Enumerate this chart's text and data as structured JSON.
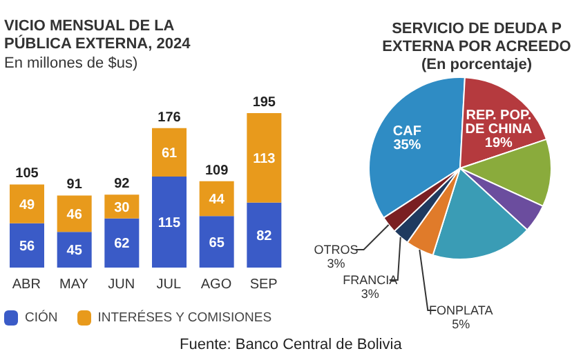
{
  "chart_data": [
    {
      "type": "bar",
      "title": "VICIO MENSUAL DE LA\nPÚBLICA EXTERNA, 2024",
      "subtitle": "En millones de $us)",
      "categories": [
        "ABR",
        "MAY",
        "JUN",
        "JUL",
        "AGO",
        "SEP"
      ],
      "stacked": true,
      "data_labels": true,
      "legend": "bottom",
      "series": [
        {
          "name": "CIÓN",
          "color": "#3a5bc7",
          "values": [
            56,
            45,
            62,
            115,
            65,
            82
          ]
        },
        {
          "name": "INTERÉSES Y COMISIONES",
          "color": "#e89a1c",
          "values": [
            49,
            46,
            30,
            61,
            44,
            113
          ]
        }
      ],
      "totals": [
        "105",
        "91",
        "92",
        "176",
        "109",
        "195"
      ],
      "annotations": [
        "Fuente: Banco Central de Bolivia"
      ]
    },
    {
      "type": "pie",
      "title": "SERVICIO DE DEUDA P\nEXTERNA POR ACREEDO\n(En porcentaje)",
      "categories": [
        "CAF",
        "REP. POP.\nDE CHINA",
        null,
        null,
        null,
        "FONPLATA",
        "FRANCIA",
        "OTROS"
      ],
      "values": [
        35,
        19,
        12,
        5,
        18,
        5,
        3,
        3
      ],
      "value_labels": [
        "35%",
        "19%",
        null,
        null,
        null,
        "5%",
        "3%",
        "3%"
      ],
      "colors": [
        "#2f8cc4",
        "#b53a3e",
        "#8aab3c",
        "#6b4d9e",
        "#3a9cb5",
        "#e07b2a",
        "#1f3a5f",
        "#7a1f22"
      ]
    }
  ]
}
